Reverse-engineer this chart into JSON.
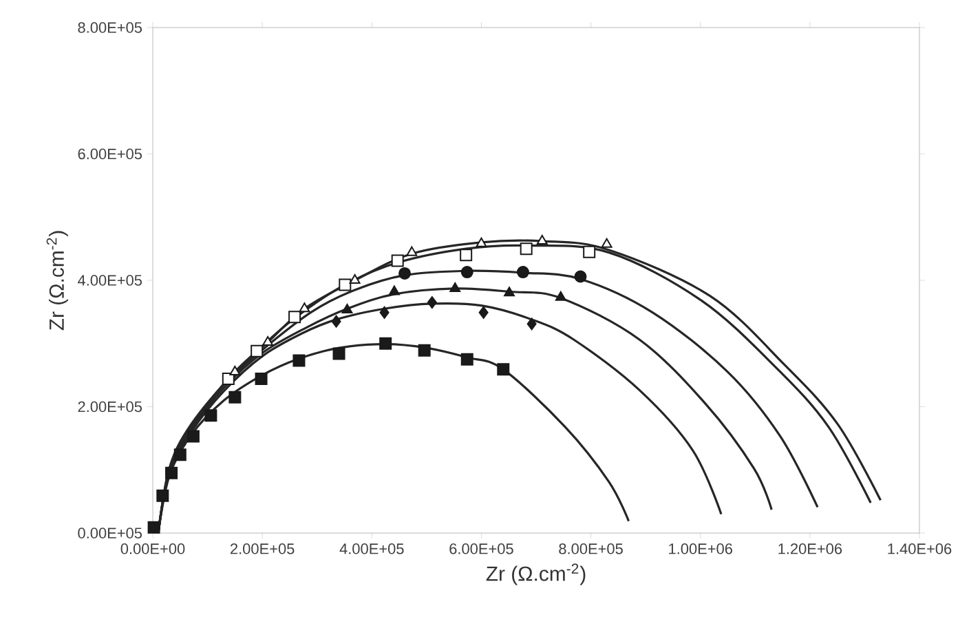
{
  "chart_data": {
    "type": "scatter",
    "xlabel": "Zr (Ω.cm$^{-2}$)",
    "ylabel": "Zr (Ω.cm$^{-2}$)",
    "xlim": [
      0,
      1400000
    ],
    "ylim": [
      0,
      800000
    ],
    "xticks": [
      {
        "value": 0,
        "label": "0.00E+00"
      },
      {
        "value": 200000,
        "label": "2.00E+05"
      },
      {
        "value": 400000,
        "label": "4.00E+05"
      },
      {
        "value": 600000,
        "label": "6.00E+05"
      },
      {
        "value": 800000,
        "label": "8.00E+05"
      },
      {
        "value": 1000000,
        "label": "1.00E+06"
      },
      {
        "value": 1200000,
        "label": "1.20E+06"
      },
      {
        "value": 1400000,
        "label": "1.40E+06"
      }
    ],
    "yticks": [
      {
        "value": 0,
        "label": "0.00E+05"
      },
      {
        "value": 200000,
        "label": "2.00E+05"
      },
      {
        "value": 400000,
        "label": "4.00E+05"
      },
      {
        "value": 600000,
        "label": "6.00E+05"
      },
      {
        "value": 800000,
        "label": "8.00E+05"
      }
    ],
    "grid": false,
    "series": [
      {
        "marker": "square",
        "color": "#1a1a1a",
        "x": [
          2000,
          18000,
          34000,
          50000,
          74000,
          106000,
          150000,
          198000,
          267000,
          340000,
          425000,
          496000,
          574000,
          640000
        ],
        "values": [
          9000,
          59000,
          95000,
          124000,
          153000,
          186000,
          215000,
          244000,
          273000,
          284000,
          300000,
          289000,
          275000,
          259000
        ]
      },
      {
        "marker": "diamond",
        "color": "#1a1a1a",
        "x": [
          335000,
          423000,
          510000,
          604000,
          692000
        ],
        "values": [
          335000,
          349000,
          365000,
          349000,
          331000
        ]
      },
      {
        "marker": "triangle",
        "color": "#1a1a1a",
        "x": [
          355000,
          441000,
          552000,
          651000,
          745000
        ],
        "values": [
          353000,
          382000,
          387000,
          380000,
          373000
        ]
      },
      {
        "marker": "circle",
        "color": "#1a1a1a",
        "x": [
          460000,
          574000,
          676000,
          781000
        ],
        "values": [
          411000,
          413000,
          413000,
          406000
        ]
      },
      {
        "marker": "square",
        "color": "#ffffff",
        "x": [
          138000,
          190000,
          259000,
          351000,
          447000,
          572000,
          682000,
          797000
        ],
        "values": [
          244000,
          288000,
          342000,
          393000,
          431000,
          440000,
          450000,
          445000
        ]
      },
      {
        "marker": "triangle",
        "color": "#ffffff",
        "x": [
          150000,
          210000,
          277000,
          369000,
          473000,
          600000,
          711000,
          829000
        ],
        "values": [
          255000,
          302000,
          355000,
          400000,
          444000,
          458000,
          462000,
          457000
        ]
      },
      {
        "type": "line",
        "marker": "none",
        "color": "#262626",
        "x": [
          10000,
          30000,
          70000,
          130000,
          200000,
          267000,
          340000,
          425000,
          500000,
          574000,
          640000,
          753000,
          833000,
          869000
        ],
        "values": [
          0,
          90000,
          155000,
          210000,
          250000,
          276000,
          293000,
          299000,
          293000,
          278000,
          259000,
          168000,
          81000,
          19000
        ]
      },
      {
        "type": "line",
        "marker": "none",
        "color": "#262626",
        "x": [
          10000,
          30000,
          70000,
          130000,
          200000,
          270000,
          335000,
          423000,
          510000,
          600000,
          692000,
          769000,
          889000,
          986000,
          1038000
        ],
        "values": [
          0,
          95000,
          160000,
          225000,
          280000,
          315000,
          338000,
          355000,
          363000,
          360000,
          338000,
          306000,
          226000,
          131000,
          30000
        ]
      },
      {
        "type": "line",
        "marker": "none",
        "color": "#262626",
        "x": [
          10000,
          30000,
          70000,
          130000,
          200000,
          280000,
          355000,
          441000,
          552000,
          651000,
          745000,
          889000,
          1010000,
          1098000,
          1130000
        ],
        "values": [
          0,
          97000,
          163000,
          230000,
          285000,
          325000,
          355000,
          378000,
          387000,
          382000,
          372000,
          306000,
          204000,
          102000,
          37000
        ]
      },
      {
        "type": "line",
        "marker": "none",
        "color": "#262626",
        "x": [
          10000,
          30000,
          70000,
          130000,
          200000,
          290000,
          370000,
          460000,
          574000,
          676000,
          781000,
          913000,
          1050000,
          1146000,
          1214000
        ],
        "values": [
          0,
          98000,
          166000,
          235000,
          290000,
          350000,
          385000,
          408000,
          415000,
          412000,
          402000,
          349000,
          255000,
          153000,
          41000
        ]
      },
      {
        "type": "line",
        "marker": "none",
        "color": "#262626",
        "x": [
          10000,
          30000,
          70000,
          138000,
          190000,
          259000,
          351000,
          447000,
          572000,
          682000,
          833000,
          1002000,
          1138000,
          1234000,
          1311000
        ],
        "values": [
          0,
          100000,
          170000,
          244000,
          288000,
          340000,
          393000,
          428000,
          450000,
          455000,
          444000,
          368000,
          262000,
          168000,
          48000
        ]
      },
      {
        "type": "line",
        "marker": "none",
        "color": "#262626",
        "x": [
          10000,
          30000,
          70000,
          150000,
          210000,
          277000,
          369000,
          473000,
          600000,
          711000,
          833000,
          1018000,
          1154000,
          1251000,
          1329000
        ],
        "values": [
          0,
          102000,
          172000,
          255000,
          302000,
          355000,
          400000,
          442000,
          460000,
          462000,
          448000,
          375000,
          266000,
          172000,
          52000
        ]
      }
    ]
  }
}
